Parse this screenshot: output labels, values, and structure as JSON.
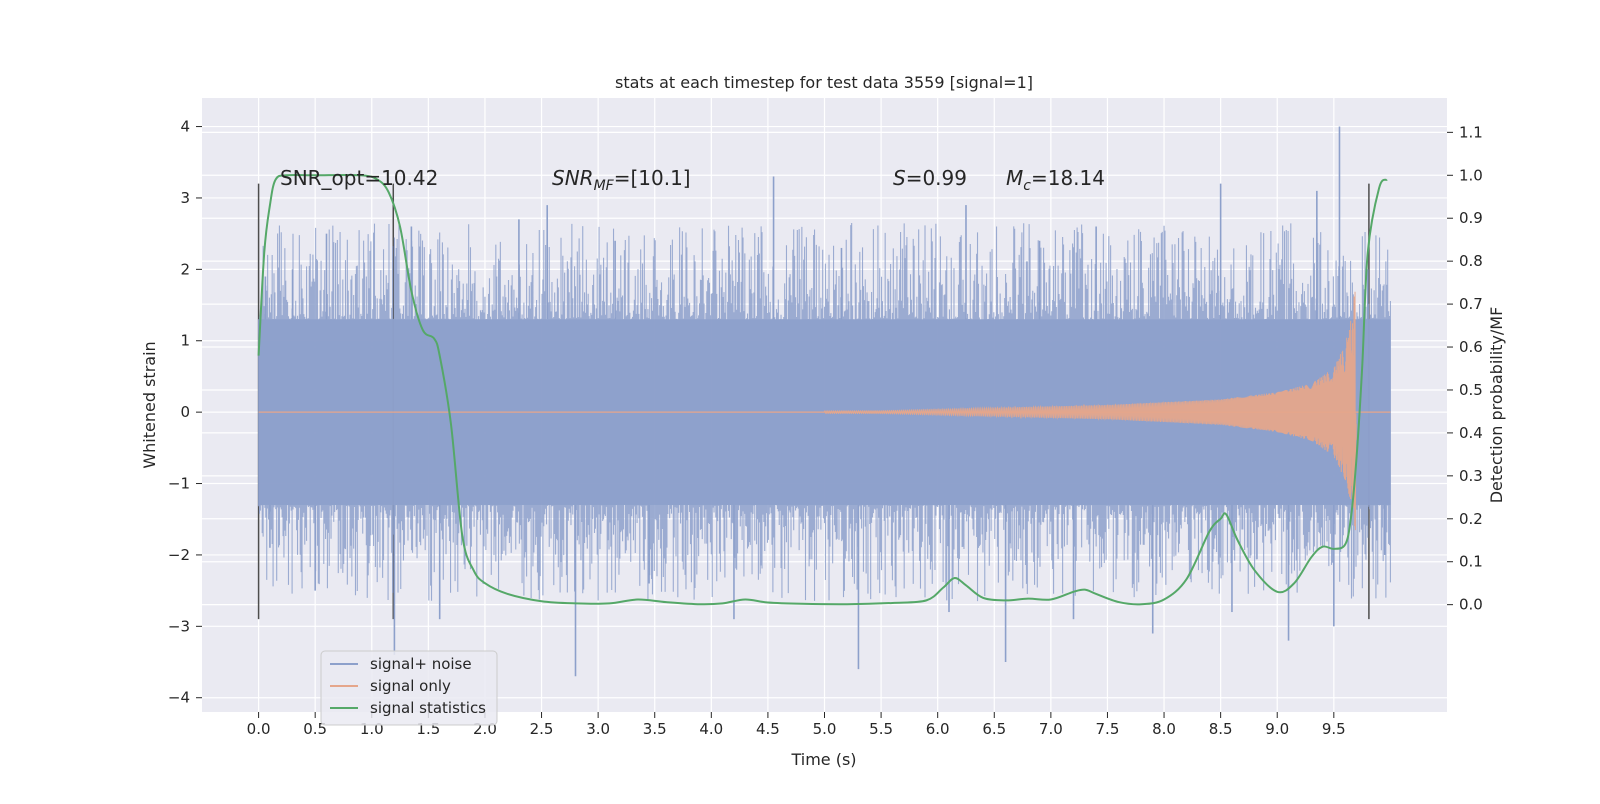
{
  "chart_data": {
    "type": "line",
    "title": "stats at each timestep for test data 3559 [signal=1]",
    "xlabel": "Time (s)",
    "ylabel": "Whitened strain",
    "ylabel_right": "Detection probability/MF",
    "xlim": [
      -0.5,
      10.5
    ],
    "ylim": [
      -4.2,
      4.4
    ],
    "ylim_right": [
      -0.25,
      1.18
    ],
    "x_ticks": [
      "0.0",
      "0.5",
      "1.0",
      "1.5",
      "2.0",
      "2.5",
      "3.0",
      "3.5",
      "4.0",
      "4.5",
      "5.0",
      "5.5",
      "6.0",
      "6.5",
      "7.0",
      "7.5",
      "8.0",
      "8.5",
      "9.0",
      "9.5"
    ],
    "y_ticks": [
      "4",
      "3",
      "2",
      "1",
      "0",
      "−1",
      "−2",
      "−3",
      "−4"
    ],
    "y_right_ticks": [
      "1.1",
      "1.0",
      "0.9",
      "0.8",
      "0.7",
      "0.6",
      "0.5",
      "0.4",
      "0.3",
      "0.2",
      "0.1",
      "0.0"
    ],
    "grid": true,
    "legend_position": "bottom-left",
    "annotations": {
      "snr_opt": "SNR_opt=10.42",
      "snr_mf_label": "SNR",
      "snr_mf_sub": "MF",
      "snr_mf_value": "=[10.1]",
      "s_label": "S",
      "s_value": "=0.99",
      "mc_label": "M",
      "mc_sub": "c",
      "mc_value": "=18.14"
    },
    "vertical_markers": [
      0.0,
      1.19,
      9.81
    ],
    "series": [
      {
        "name": "signal+ noise",
        "color": "#8da0cb",
        "x_range": [
          0.0,
          10.0
        ],
        "envelope_upper": 1.3,
        "envelope_lower": -1.3,
        "peaks": [
          [
            0.06,
            1.9
          ],
          [
            0.3,
            2.0
          ],
          [
            0.6,
            2.5
          ],
          [
            1.35,
            2.6
          ],
          [
            2.3,
            2.7
          ],
          [
            2.55,
            2.9
          ],
          [
            3.15,
            2.4
          ],
          [
            4.55,
            3.3
          ],
          [
            5.15,
            2.3
          ],
          [
            6.25,
            2.9
          ],
          [
            6.9,
            2.4
          ],
          [
            7.4,
            2.6
          ],
          [
            8.5,
            3.2
          ],
          [
            9.35,
            3.1
          ],
          [
            9.55,
            4.0
          ],
          [
            9.8,
            2.0
          ]
        ],
        "troughs": [
          [
            0.1,
            -1.9
          ],
          [
            0.5,
            -2.5
          ],
          [
            1.2,
            -3.4
          ],
          [
            1.6,
            -2.9
          ],
          [
            2.8,
            -3.7
          ],
          [
            3.45,
            -2.4
          ],
          [
            4.2,
            -2.9
          ],
          [
            5.3,
            -3.6
          ],
          [
            6.1,
            -2.8
          ],
          [
            6.6,
            -3.5
          ],
          [
            7.2,
            -2.9
          ],
          [
            7.9,
            -3.1
          ],
          [
            8.6,
            -2.8
          ],
          [
            9.1,
            -3.2
          ],
          [
            9.5,
            -3.0
          ],
          [
            9.95,
            -2.0
          ]
        ]
      },
      {
        "name": "signal only",
        "color": "#e5a68b",
        "x_range": [
          0.0,
          10.0
        ],
        "amplitude_points": [
          [
            0.0,
            0.0
          ],
          [
            5.5,
            0.02
          ],
          [
            6.5,
            0.06
          ],
          [
            7.5,
            0.1
          ],
          [
            8.5,
            0.18
          ],
          [
            9.0,
            0.28
          ],
          [
            9.3,
            0.4
          ],
          [
            9.5,
            0.62
          ],
          [
            9.6,
            0.95
          ],
          [
            9.65,
            1.3
          ],
          [
            9.69,
            1.75
          ],
          [
            9.7,
            0.0
          ],
          [
            10.0,
            0.0
          ]
        ]
      },
      {
        "name": "signal statistics",
        "color": "#55a868",
        "axis": "right",
        "x": [
          0.0,
          0.05,
          0.1,
          0.15,
          0.25,
          0.5,
          0.9,
          1.05,
          1.15,
          1.25,
          1.35,
          1.45,
          1.55,
          1.6,
          1.7,
          1.8,
          1.9,
          2.0,
          2.2,
          2.5,
          2.8,
          3.1,
          3.35,
          3.6,
          3.9,
          4.1,
          4.3,
          4.5,
          4.8,
          5.2,
          5.6,
          5.9,
          6.05,
          6.15,
          6.25,
          6.4,
          6.6,
          6.8,
          7.0,
          7.2,
          7.3,
          7.4,
          7.6,
          7.8,
          8.0,
          8.2,
          8.4,
          8.5,
          8.55,
          8.65,
          8.8,
          9.0,
          9.15,
          9.3,
          9.4,
          9.5,
          9.6,
          9.65,
          9.7,
          9.75,
          9.8,
          9.9,
          9.97
        ],
        "y": [
          0.58,
          0.82,
          0.93,
          0.99,
          1.0,
          1.0,
          1.0,
          0.99,
          0.96,
          0.88,
          0.73,
          0.64,
          0.62,
          0.58,
          0.42,
          0.16,
          0.08,
          0.05,
          0.025,
          0.008,
          0.003,
          0.003,
          0.012,
          0.006,
          0.001,
          0.003,
          0.012,
          0.005,
          0.002,
          0.001,
          0.004,
          0.01,
          0.04,
          0.062,
          0.045,
          0.016,
          0.01,
          0.014,
          0.012,
          0.03,
          0.035,
          0.025,
          0.006,
          0.001,
          0.012,
          0.06,
          0.17,
          0.2,
          0.21,
          0.15,
          0.08,
          0.03,
          0.05,
          0.11,
          0.135,
          0.13,
          0.14,
          0.2,
          0.34,
          0.55,
          0.82,
          0.97,
          0.99
        ]
      }
    ]
  }
}
